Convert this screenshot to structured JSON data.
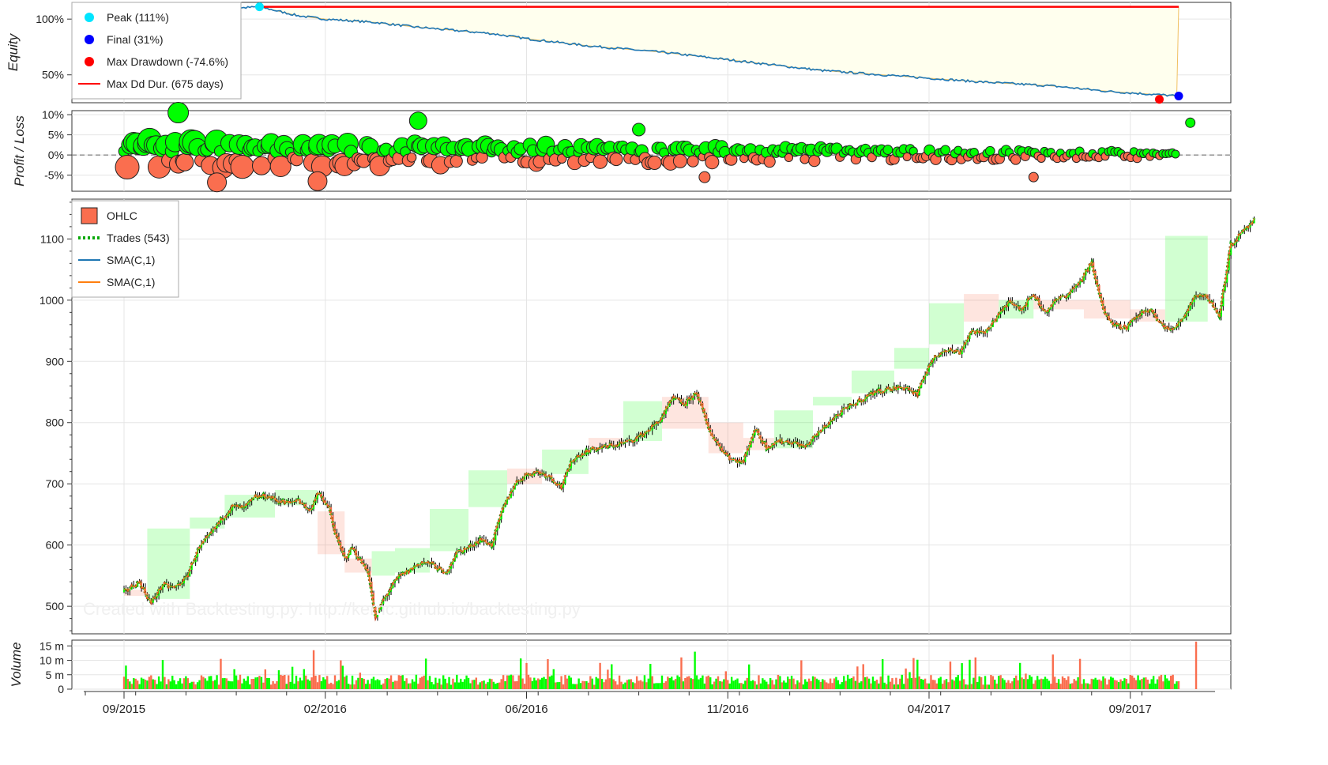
{
  "axis_titles": {
    "equity": "Equity",
    "pl": "Profit / Loss",
    "volume": "Volume"
  },
  "watermark": "Created with Backtesting.py: http://kernc.github.io/backtesting.py",
  "x_ticks": [
    {
      "label": "09/2015",
      "i": 0
    },
    {
      "label": "02/2016",
      "i": 104
    },
    {
      "label": "06/2016",
      "i": 208
    },
    {
      "label": "11/2016",
      "i": 312
    },
    {
      "label": "04/2017",
      "i": 416
    },
    {
      "label": "09/2017",
      "i": 520
    }
  ],
  "equity_legend": [
    {
      "label": "Peak (111%)",
      "color": "#00e5ff",
      "kind": "dot"
    },
    {
      "label": "Final (31%)",
      "color": "#0000ff",
      "kind": "dot"
    },
    {
      "label": "Max Drawdown (-74.6%)",
      "color": "#ff0000",
      "kind": "dot"
    },
    {
      "label": "Max Dd Dur. (675 days)",
      "color": "#ff0000",
      "kind": "line"
    }
  ],
  "ohlc_legend": [
    {
      "label": "OHLC",
      "color": "#fa6e4f",
      "kind": "box"
    },
    {
      "label": "Trades (543)",
      "color": "#0aa90a",
      "kind": "dash"
    },
    {
      "label": "SMA(C,1)",
      "color": "#1f77b4",
      "kind": "line"
    },
    {
      "label": "SMA(C,1)",
      "color": "#ff7f0e",
      "kind": "line"
    }
  ],
  "colors": {
    "up": "#00ff00",
    "down": "#fa6e4f",
    "equity": "#1f77b4",
    "dd_fill": "#ffffee",
    "grid": "#e5e5e5"
  },
  "chart_data": [
    {
      "type": "line",
      "name": "Equity",
      "ylabel": "Equity",
      "yticks": [
        "100%",
        "50%"
      ],
      "ylim": [
        0.25,
        1.15
      ],
      "points": [
        [
          0,
          1.06
        ],
        [
          20,
          1.09
        ],
        [
          40,
          1.08
        ],
        [
          70,
          1.11
        ],
        [
          90,
          1.03
        ],
        [
          104,
          1.0
        ],
        [
          130,
          0.97
        ],
        [
          150,
          0.93
        ],
        [
          170,
          0.9
        ],
        [
          190,
          0.87
        ],
        [
          210,
          0.82
        ],
        [
          240,
          0.76
        ],
        [
          280,
          0.7
        ],
        [
          320,
          0.62
        ],
        [
          360,
          0.54
        ],
        [
          400,
          0.49
        ],
        [
          440,
          0.44
        ],
        [
          480,
          0.4
        ],
        [
          510,
          0.35
        ],
        [
          545,
          0.31
        ]
      ],
      "peak": {
        "value": 1.11,
        "i": 70,
        "label": "Peak (111%)"
      },
      "final": {
        "value": 0.31,
        "i": 545,
        "label": "Final (31%)"
      },
      "max_drawdown": {
        "value": 0.28,
        "i": 535,
        "label": "Max Drawdown (-74.6%)"
      },
      "max_dd_duration": {
        "from_i": 70,
        "to_i": 545,
        "label": "Max Dd Dur. (675 days)"
      }
    },
    {
      "type": "scatter",
      "name": "Profit / Loss",
      "ylabel": "Profit / Loss",
      "yticks": [
        "10%",
        "5%",
        "0%",
        "-5%"
      ],
      "ylim": [
        -0.09,
        0.11
      ],
      "trades": 543
    },
    {
      "type": "line",
      "name": "OHLC",
      "yticks": [
        1100,
        1000,
        900,
        800,
        700,
        600,
        500
      ],
      "ylim": [
        455,
        1165
      ],
      "close": [
        [
          0,
          523
        ],
        [
          8,
          540
        ],
        [
          14,
          505
        ],
        [
          20,
          535
        ],
        [
          26,
          530
        ],
        [
          32,
          545
        ],
        [
          38,
          590
        ],
        [
          44,
          615
        ],
        [
          50,
          640
        ],
        [
          56,
          663
        ],
        [
          62,
          660
        ],
        [
          68,
          678
        ],
        [
          74,
          680
        ],
        [
          80,
          672
        ],
        [
          86,
          668
        ],
        [
          90,
          675
        ],
        [
          96,
          655
        ],
        [
          100,
          685
        ],
        [
          106,
          660
        ],
        [
          110,
          610
        ],
        [
          114,
          578
        ],
        [
          118,
          596
        ],
        [
          122,
          575
        ],
        [
          126,
          560
        ],
        [
          130,
          480
        ],
        [
          134,
          510
        ],
        [
          138,
          530
        ],
        [
          142,
          548
        ],
        [
          148,
          560
        ],
        [
          154,
          572
        ],
        [
          160,
          568
        ],
        [
          166,
          552
        ],
        [
          172,
          588
        ],
        [
          178,
          595
        ],
        [
          184,
          610
        ],
        [
          190,
          600
        ],
        [
          196,
          660
        ],
        [
          202,
          700
        ],
        [
          208,
          715
        ],
        [
          214,
          720
        ],
        [
          220,
          712
        ],
        [
          226,
          695
        ],
        [
          232,
          740
        ],
        [
          240,
          755
        ],
        [
          248,
          760
        ],
        [
          256,
          765
        ],
        [
          262,
          770
        ],
        [
          268,
          780
        ],
        [
          276,
          800
        ],
        [
          284,
          840
        ],
        [
          290,
          830
        ],
        [
          296,
          850
        ],
        [
          302,
          790
        ],
        [
          308,
          760
        ],
        [
          314,
          740
        ],
        [
          320,
          735
        ],
        [
          326,
          790
        ],
        [
          332,
          760
        ],
        [
          338,
          770
        ],
        [
          346,
          768
        ],
        [
          352,
          760
        ],
        [
          358,
          780
        ],
        [
          366,
          805
        ],
        [
          372,
          820
        ],
        [
          380,
          835
        ],
        [
          388,
          850
        ],
        [
          396,
          855
        ],
        [
          404,
          858
        ],
        [
          410,
          845
        ],
        [
          416,
          895
        ],
        [
          424,
          920
        ],
        [
          432,
          915
        ],
        [
          438,
          950
        ],
        [
          444,
          945
        ],
        [
          452,
          975
        ],
        [
          458,
          1000
        ],
        [
          464,
          985
        ],
        [
          470,
          1010
        ],
        [
          476,
          980
        ],
        [
          482,
          1000
        ],
        [
          488,
          1010
        ],
        [
          494,
          1030
        ],
        [
          500,
          1060
        ],
        [
          506,
          985
        ],
        [
          512,
          960
        ],
        [
          518,
          955
        ],
        [
          524,
          975
        ],
        [
          530,
          985
        ],
        [
          536,
          960
        ],
        [
          542,
          950
        ],
        [
          548,
          975
        ],
        [
          554,
          1010
        ],
        [
          560,
          1005
        ],
        [
          566,
          975
        ],
        [
          572,
          1090
        ],
        [
          578,
          1110
        ],
        [
          584,
          1130
        ]
      ],
      "trade_zones": [
        {
          "from_i": 0,
          "to_i": 12,
          "y0": 517,
          "y1": 527,
          "dir": "down"
        },
        {
          "from_i": 12,
          "to_i": 34,
          "y0": 512,
          "y1": 627,
          "dir": "up"
        },
        {
          "from_i": 34,
          "to_i": 52,
          "y0": 627,
          "y1": 645,
          "dir": "up"
        },
        {
          "from_i": 52,
          "to_i": 78,
          "y0": 645,
          "y1": 682,
          "dir": "up"
        },
        {
          "from_i": 78,
          "to_i": 100,
          "y0": 665,
          "y1": 690,
          "dir": "up"
        },
        {
          "from_i": 100,
          "to_i": 114,
          "y0": 585,
          "y1": 655,
          "dir": "down"
        },
        {
          "from_i": 114,
          "to_i": 128,
          "y0": 555,
          "y1": 578,
          "dir": "down"
        },
        {
          "from_i": 128,
          "to_i": 140,
          "y0": 550,
          "y1": 590,
          "dir": "up"
        },
        {
          "from_i": 140,
          "to_i": 158,
          "y0": 555,
          "y1": 595,
          "dir": "up"
        },
        {
          "from_i": 158,
          "to_i": 178,
          "y0": 590,
          "y1": 659,
          "dir": "up"
        },
        {
          "from_i": 178,
          "to_i": 198,
          "y0": 662,
          "y1": 722,
          "dir": "up"
        },
        {
          "from_i": 198,
          "to_i": 216,
          "y0": 700,
          "y1": 725,
          "dir": "down"
        },
        {
          "from_i": 216,
          "to_i": 240,
          "y0": 716,
          "y1": 756,
          "dir": "up"
        },
        {
          "from_i": 240,
          "to_i": 258,
          "y0": 760,
          "y1": 775,
          "dir": "down"
        },
        {
          "from_i": 258,
          "to_i": 278,
          "y0": 770,
          "y1": 835,
          "dir": "up"
        },
        {
          "from_i": 278,
          "to_i": 302,
          "y0": 790,
          "y1": 842,
          "dir": "down"
        },
        {
          "from_i": 302,
          "to_i": 320,
          "y0": 750,
          "y1": 800,
          "dir": "down"
        },
        {
          "from_i": 320,
          "to_i": 336,
          "y0": 755,
          "y1": 775,
          "dir": "down"
        },
        {
          "from_i": 336,
          "to_i": 356,
          "y0": 758,
          "y1": 820,
          "dir": "up"
        },
        {
          "from_i": 356,
          "to_i": 376,
          "y0": 828,
          "y1": 842,
          "dir": "up"
        },
        {
          "from_i": 376,
          "to_i": 398,
          "y0": 848,
          "y1": 885,
          "dir": "up"
        },
        {
          "from_i": 398,
          "to_i": 416,
          "y0": 888,
          "y1": 922,
          "dir": "up"
        },
        {
          "from_i": 416,
          "to_i": 434,
          "y0": 928,
          "y1": 995,
          "dir": "up"
        },
        {
          "from_i": 434,
          "to_i": 452,
          "y0": 965,
          "y1": 1010,
          "dir": "down"
        },
        {
          "from_i": 452,
          "to_i": 470,
          "y0": 970,
          "y1": 1000,
          "dir": "up"
        },
        {
          "from_i": 470,
          "to_i": 496,
          "y0": 985,
          "y1": 1000,
          "dir": "down"
        },
        {
          "from_i": 496,
          "to_i": 520,
          "y0": 970,
          "y1": 1000,
          "dir": "down"
        },
        {
          "from_i": 520,
          "to_i": 538,
          "y0": 965,
          "y1": 985,
          "dir": "down"
        },
        {
          "from_i": 538,
          "to_i": 560,
          "y0": 965,
          "y1": 1105,
          "dir": "up"
        }
      ]
    },
    {
      "type": "bar",
      "name": "Volume",
      "ylabel": "Volume",
      "yticks": [
        "15 m",
        "10 m",
        "5 m",
        "0"
      ],
      "ylim": [
        0,
        17000000
      ],
      "bars": 545
    }
  ]
}
